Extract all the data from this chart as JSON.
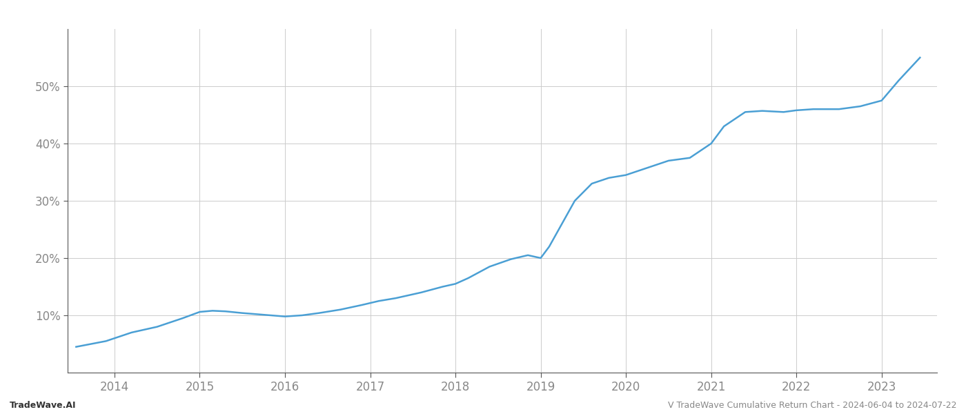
{
  "title": "",
  "footer_left": "TradeWave.AI",
  "footer_right": "V TradeWave Cumulative Return Chart - 2024-06-04 to 2024-07-22",
  "line_color": "#4a9fd4",
  "line_width": 1.8,
  "background_color": "#ffffff",
  "grid_color": "#cccccc",
  "x_years": [
    2014,
    2015,
    2016,
    2017,
    2018,
    2019,
    2020,
    2021,
    2022,
    2023
  ],
  "x_data": [
    2013.55,
    2013.9,
    2014.2,
    2014.5,
    2014.8,
    2015.0,
    2015.15,
    2015.3,
    2015.5,
    2015.75,
    2016.0,
    2016.2,
    2016.4,
    2016.65,
    2016.9,
    2017.1,
    2017.3,
    2017.6,
    2017.85,
    2018.0,
    2018.15,
    2018.4,
    2018.65,
    2018.85,
    2019.0,
    2019.1,
    2019.25,
    2019.4,
    2019.6,
    2019.8,
    2020.0,
    2020.2,
    2020.5,
    2020.75,
    2021.0,
    2021.15,
    2021.4,
    2021.6,
    2021.85,
    2022.0,
    2022.2,
    2022.5,
    2022.75,
    2023.0,
    2023.2,
    2023.45
  ],
  "y_data": [
    4.5,
    5.5,
    7.0,
    8.0,
    9.5,
    10.6,
    10.8,
    10.7,
    10.4,
    10.1,
    9.8,
    10.0,
    10.4,
    11.0,
    11.8,
    12.5,
    13.0,
    14.0,
    15.0,
    15.5,
    16.5,
    18.5,
    19.8,
    20.5,
    20.0,
    22.0,
    26.0,
    30.0,
    33.0,
    34.0,
    34.5,
    35.5,
    37.0,
    37.5,
    40.0,
    43.0,
    45.5,
    45.7,
    45.5,
    45.8,
    46.0,
    46.0,
    46.5,
    47.5,
    51.0,
    55.0
  ],
  "ylim": [
    0,
    60
  ],
  "yticks": [
    10,
    20,
    30,
    40,
    50
  ],
  "xlim": [
    2013.45,
    2023.65
  ],
  "text_color": "#888888",
  "tick_color": "#888888",
  "footer_fontsize": 9,
  "tick_fontsize": 12,
  "spine_color": "#555555"
}
